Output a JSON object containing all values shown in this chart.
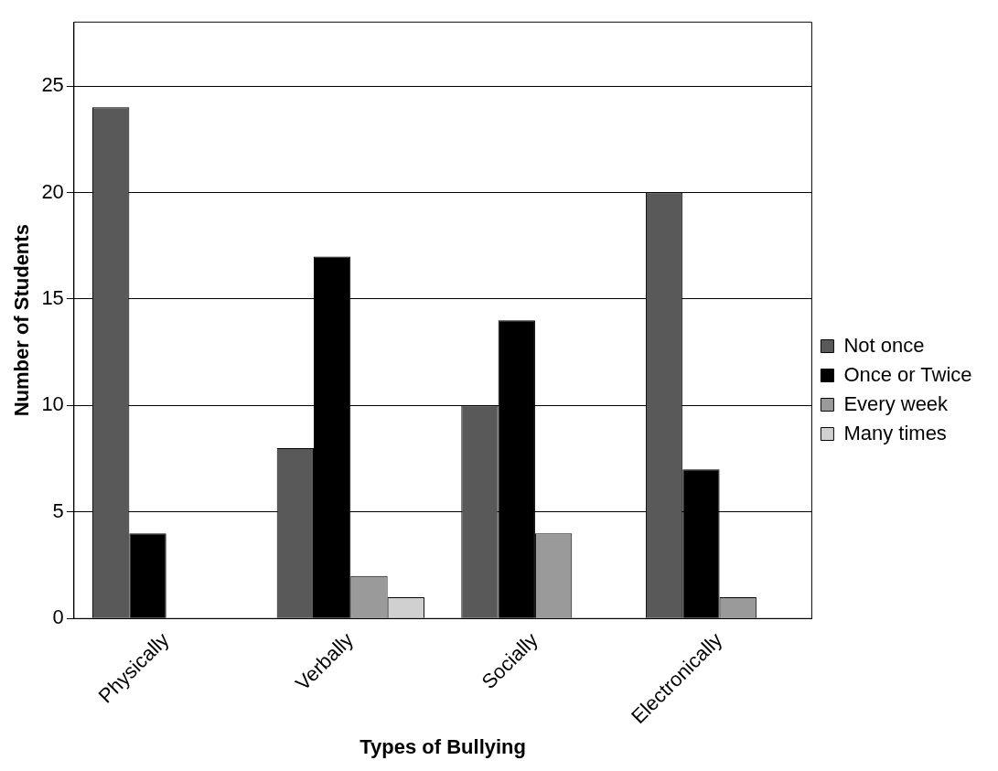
{
  "chart_data": {
    "type": "bar",
    "xlabel": "Types of Bullying",
    "ylabel": "Number of Students",
    "categories": [
      "Physically",
      "Verbally",
      "Socially",
      "Electronically"
    ],
    "series": [
      {
        "name": "Not once",
        "color": "#595959",
        "values": [
          24,
          8,
          10,
          20
        ]
      },
      {
        "name": "Once or Twice",
        "color": "#000000",
        "values": [
          4,
          17,
          14,
          7
        ]
      },
      {
        "name": "Every week",
        "color": "#9a9a9a",
        "values": [
          0,
          2,
          4,
          1
        ]
      },
      {
        "name": "Many times",
        "color": "#d0d0d0",
        "values": [
          0,
          1,
          0,
          0
        ]
      }
    ],
    "ylim": [
      0,
      28
    ],
    "yticks": [
      0,
      5,
      10,
      15,
      20,
      25
    ],
    "grid": "y",
    "legend": "right"
  }
}
